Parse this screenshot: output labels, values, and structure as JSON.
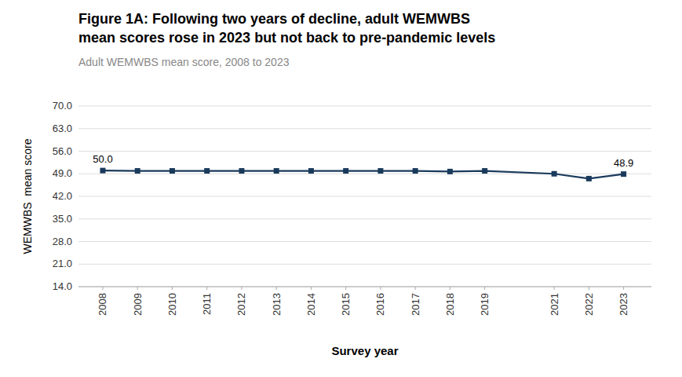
{
  "chart_data": {
    "type": "line",
    "title": [
      "Figure 1A: Following two years of decline, adult WEMWBS",
      "mean scores rose in 2023 but not back to pre-pandemic levels"
    ],
    "subtitle": "Adult WEMWBS mean score, 2008 to 2023",
    "x_label": "Survey year",
    "y_label": "WEMWBS  mean score",
    "x": [
      2008,
      2009,
      2010,
      2011,
      2012,
      2013,
      2014,
      2015,
      2016,
      2017,
      2018,
      2019,
      2021,
      2022,
      2023
    ],
    "values": [
      50.0,
      49.9,
      49.9,
      49.9,
      49.9,
      49.9,
      49.9,
      49.9,
      49.9,
      49.9,
      49.7,
      49.9,
      49.0,
      47.5,
      48.9
    ],
    "color": "#1a3a5c",
    "marker": "square",
    "xlim": [
      2007.3,
      2023.8
    ],
    "xticks": [
      2008,
      2009,
      2010,
      2011,
      2012,
      2013,
      2014,
      2015,
      2016,
      2017,
      2018,
      2019,
      2021,
      2022,
      2023
    ],
    "ylim": [
      14.0,
      70.0
    ],
    "yticks": [
      {
        "value": 14.0,
        "label": "14.0"
      },
      {
        "value": 21.0,
        "label": "21.0"
      },
      {
        "value": 28.0,
        "label": "28.0"
      },
      {
        "value": 35.0,
        "label": "35.0"
      },
      {
        "value": 42.0,
        "label": "42.0"
      },
      {
        "value": 49.0,
        "label": "49.0"
      },
      {
        "value": 56.0,
        "label": "56.0"
      },
      {
        "value": 63.0,
        "label": "63.0"
      },
      {
        "value": 70.0,
        "label": "70.0"
      }
    ],
    "grid": "y",
    "annotations": [
      {
        "x": 2008,
        "y": 50.0,
        "text": "50.0"
      },
      {
        "x": 2023,
        "y": 48.9,
        "text": "48.9"
      }
    ]
  }
}
